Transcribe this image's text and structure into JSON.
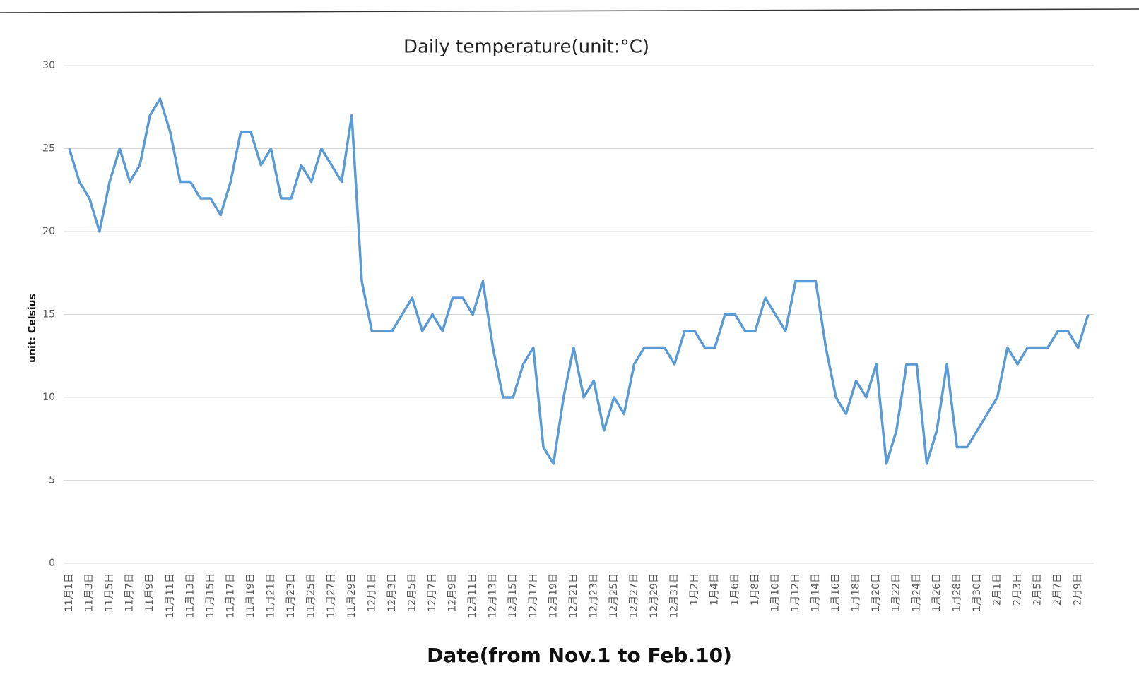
{
  "chart_data": {
    "type": "line",
    "title": "Daily temperature(unit:°C)",
    "x_label": "Date(from Nov.1 to Feb.10)",
    "y_label": "unit: Celsius",
    "categories": [
      "11月1日",
      null,
      "11月3日",
      null,
      "11月5日",
      null,
      "11月7日",
      null,
      "11月9日",
      null,
      "11月11日",
      null,
      "11月13日",
      null,
      "11月15日",
      null,
      "11月17日",
      null,
      "11月19日",
      null,
      "11月21日",
      null,
      "11月23日",
      null,
      "11月25日",
      null,
      "11月27日",
      null,
      "11月29日",
      null,
      "12月1日",
      null,
      "12月3日",
      null,
      "12月5日",
      null,
      "12月7日",
      null,
      "12月9日",
      null,
      "12月11日",
      null,
      "12月13日",
      null,
      "12月15日",
      null,
      "12月17日",
      null,
      "12月19日",
      null,
      "12月21日",
      null,
      "12月23日",
      null,
      "12月25日",
      null,
      "12月27日",
      null,
      "12月29日",
      null,
      "12月31日",
      null,
      "1月2日",
      null,
      "1月4日",
      null,
      "1月6日",
      null,
      "1月8日",
      null,
      "1月10日",
      null,
      "1月12日",
      null,
      "1月14日",
      null,
      "1月16日",
      null,
      "1月18日",
      null,
      "1月20日",
      null,
      "1月22日",
      null,
      "1月24日",
      null,
      "1月26日",
      null,
      "1月28日",
      null,
      "1月30日",
      null,
      "2月1日",
      null,
      "2月3日",
      null,
      "2月5日",
      null,
      "2月7日",
      null,
      "2月9日",
      null
    ],
    "series": [
      {
        "name": "temperature",
        "color": "#5b9bd5",
        "values": [
          25,
          23,
          22,
          20,
          23,
          25,
          23,
          24,
          27,
          28,
          26,
          23,
          23,
          22,
          22,
          21,
          23,
          26,
          26,
          24,
          25,
          22,
          22,
          24,
          23,
          25,
          24,
          23,
          27,
          17,
          14,
          14,
          14,
          15,
          16,
          14,
          15,
          14,
          16,
          16,
          15,
          17,
          13,
          10,
          10,
          12,
          13,
          7,
          6,
          10,
          13,
          10,
          11,
          8,
          10,
          9,
          12,
          13,
          13,
          13,
          12,
          14,
          14,
          13,
          13,
          15,
          15,
          14,
          14,
          16,
          15,
          14,
          17,
          17,
          17,
          13,
          10,
          9,
          11,
          10,
          12,
          6,
          8,
          12,
          12,
          6,
          8,
          12,
          7,
          7,
          8,
          9,
          10,
          13,
          12,
          13,
          13,
          13,
          14,
          14,
          13,
          15
        ]
      }
    ],
    "ylim": [
      0,
      30
    ],
    "yticks": [
      0,
      5,
      10,
      15,
      20,
      25,
      30
    ],
    "grid": true
  }
}
